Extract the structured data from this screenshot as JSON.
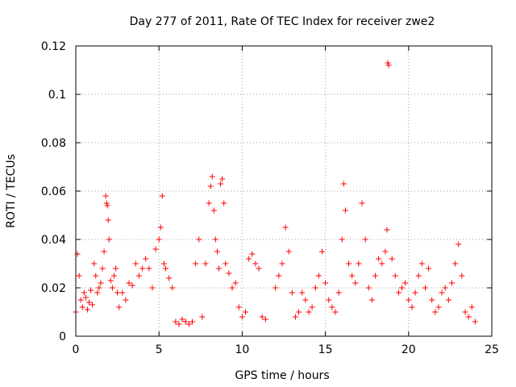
{
  "chart_data": {
    "type": "scatter",
    "title": "Day 277 of 2011, Rate Of TEC Index for receiver zwe2",
    "xlabel": "GPS time / hours",
    "ylabel": "ROTI / TECUs",
    "xlim": [
      0,
      25
    ],
    "ylim": [
      0,
      0.12
    ],
    "xticks": [
      "0",
      "5",
      "10",
      "15",
      "20",
      "25"
    ],
    "yticks": [
      "0",
      "0.02",
      "0.04",
      "0.06",
      "0.08",
      "0.1",
      "0.12"
    ],
    "grid": true,
    "marker": "+",
    "series": [
      {
        "color": "#ff0000",
        "x": [
          0.0,
          0.1,
          0.2,
          0.3,
          0.4,
          0.5,
          0.6,
          0.7,
          0.8,
          0.9,
          1.0,
          1.1,
          1.2,
          1.3,
          1.4,
          1.5,
          1.6,
          1.7,
          1.8,
          1.85,
          1.9,
          1.95,
          2.0,
          2.1,
          2.2,
          2.3,
          2.4,
          2.5,
          2.6,
          2.8,
          3.0,
          3.2,
          3.4,
          3.6,
          3.8,
          4.0,
          4.2,
          4.4,
          4.6,
          4.8,
          5.0,
          5.1,
          5.2,
          5.3,
          5.4,
          5.6,
          5.8,
          6.0,
          6.2,
          6.4,
          6.6,
          6.8,
          7.0,
          7.2,
          7.4,
          7.6,
          7.8,
          8.0,
          8.1,
          8.2,
          8.3,
          8.4,
          8.5,
          8.6,
          8.7,
          8.8,
          8.9,
          9.0,
          9.2,
          9.4,
          9.6,
          9.8,
          10.0,
          10.2,
          10.4,
          10.6,
          10.8,
          11.0,
          11.2,
          11.4,
          12.0,
          12.2,
          12.4,
          12.6,
          12.8,
          13.0,
          13.2,
          13.4,
          13.6,
          13.8,
          14.0,
          14.2,
          14.4,
          14.6,
          14.8,
          15.0,
          15.2,
          15.4,
          15.6,
          15.8,
          16.0,
          16.1,
          16.2,
          16.4,
          16.6,
          16.8,
          17.0,
          17.2,
          17.4,
          17.6,
          17.8,
          18.0,
          18.2,
          18.4,
          18.6,
          18.7,
          18.75,
          18.8,
          19.0,
          19.2,
          19.4,
          19.6,
          19.8,
          20.0,
          20.2,
          20.4,
          20.6,
          20.8,
          21.0,
          21.2,
          21.4,
          21.6,
          21.8,
          22.0,
          22.2,
          22.4,
          22.6,
          22.8,
          23.0,
          23.2,
          23.4,
          23.6,
          23.8,
          24.0
        ],
        "y": [
          0.01,
          0.034,
          0.025,
          0.015,
          0.012,
          0.018,
          0.016,
          0.011,
          0.014,
          0.019,
          0.013,
          0.03,
          0.025,
          0.018,
          0.02,
          0.022,
          0.028,
          0.035,
          0.058,
          0.055,
          0.054,
          0.048,
          0.04,
          0.023,
          0.02,
          0.025,
          0.028,
          0.018,
          0.012,
          0.018,
          0.015,
          0.022,
          0.021,
          0.03,
          0.025,
          0.028,
          0.032,
          0.028,
          0.02,
          0.036,
          0.04,
          0.045,
          0.058,
          0.03,
          0.028,
          0.024,
          0.02,
          0.006,
          0.005,
          0.007,
          0.006,
          0.005,
          0.006,
          0.03,
          0.04,
          0.008,
          0.03,
          0.055,
          0.062,
          0.066,
          0.052,
          0.04,
          0.035,
          0.028,
          0.063,
          0.065,
          0.055,
          0.03,
          0.026,
          0.02,
          0.022,
          0.012,
          0.008,
          0.01,
          0.032,
          0.034,
          0.03,
          0.028,
          0.008,
          0.007,
          0.02,
          0.025,
          0.03,
          0.045,
          0.035,
          0.018,
          0.008,
          0.01,
          0.018,
          0.015,
          0.01,
          0.012,
          0.02,
          0.025,
          0.035,
          0.022,
          0.015,
          0.012,
          0.01,
          0.018,
          0.04,
          0.063,
          0.052,
          0.03,
          0.025,
          0.022,
          0.03,
          0.055,
          0.04,
          0.02,
          0.015,
          0.025,
          0.032,
          0.03,
          0.035,
          0.044,
          0.113,
          0.112,
          0.032,
          0.025,
          0.018,
          0.02,
          0.022,
          0.015,
          0.012,
          0.018,
          0.025,
          0.03,
          0.02,
          0.028,
          0.015,
          0.01,
          0.012,
          0.018,
          0.02,
          0.015,
          0.022,
          0.03,
          0.038,
          0.025,
          0.01,
          0.008,
          0.012,
          0.006
        ]
      }
    ]
  }
}
